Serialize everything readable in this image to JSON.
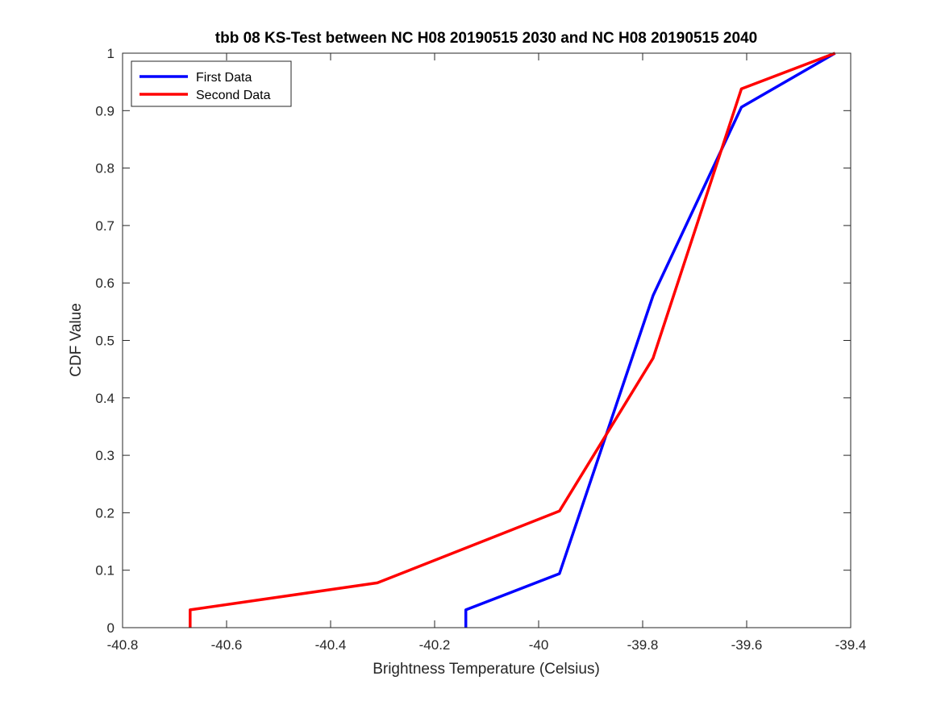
{
  "chart_data": {
    "type": "line",
    "title": "tbb 08 KS-Test between NC H08 20190515 2030 and NC H08 20190515 2040",
    "xlabel": "Brightness Temperature (Celsius)",
    "ylabel": "CDF Value",
    "xlim": [
      -40.8,
      -39.4
    ],
    "ylim": [
      0,
      1
    ],
    "xticks": [
      -40.8,
      -40.6,
      -40.4,
      -40.2,
      -40,
      -39.8,
      -39.6,
      -39.4
    ],
    "xtick_labels": [
      "-40.8",
      "-40.6",
      "-40.4",
      "-40.2",
      "-40",
      "-39.8",
      "-39.6",
      "-39.4"
    ],
    "yticks": [
      0,
      0.1,
      0.2,
      0.3,
      0.4,
      0.5,
      0.6,
      0.7,
      0.8,
      0.9,
      1
    ],
    "ytick_labels": [
      "0",
      "0.1",
      "0.2",
      "0.3",
      "0.4",
      "0.5",
      "0.6",
      "0.7",
      "0.8",
      "0.9",
      "1"
    ],
    "grid": false,
    "legend_position": "top-left",
    "series": [
      {
        "name": "First Data",
        "color": "#0000ff",
        "x": [
          -40.14,
          -40.14,
          -39.96,
          -39.78,
          -39.61,
          -39.43
        ],
        "y": [
          0,
          0.031,
          0.094,
          0.578,
          0.906,
          1.0
        ]
      },
      {
        "name": "Second Data",
        "color": "#ff0000",
        "x": [
          -40.67,
          -40.67,
          -40.31,
          -39.96,
          -39.78,
          -39.61,
          -39.43
        ],
        "y": [
          0,
          0.031,
          0.078,
          0.203,
          0.469,
          0.938,
          1.0
        ]
      }
    ]
  }
}
